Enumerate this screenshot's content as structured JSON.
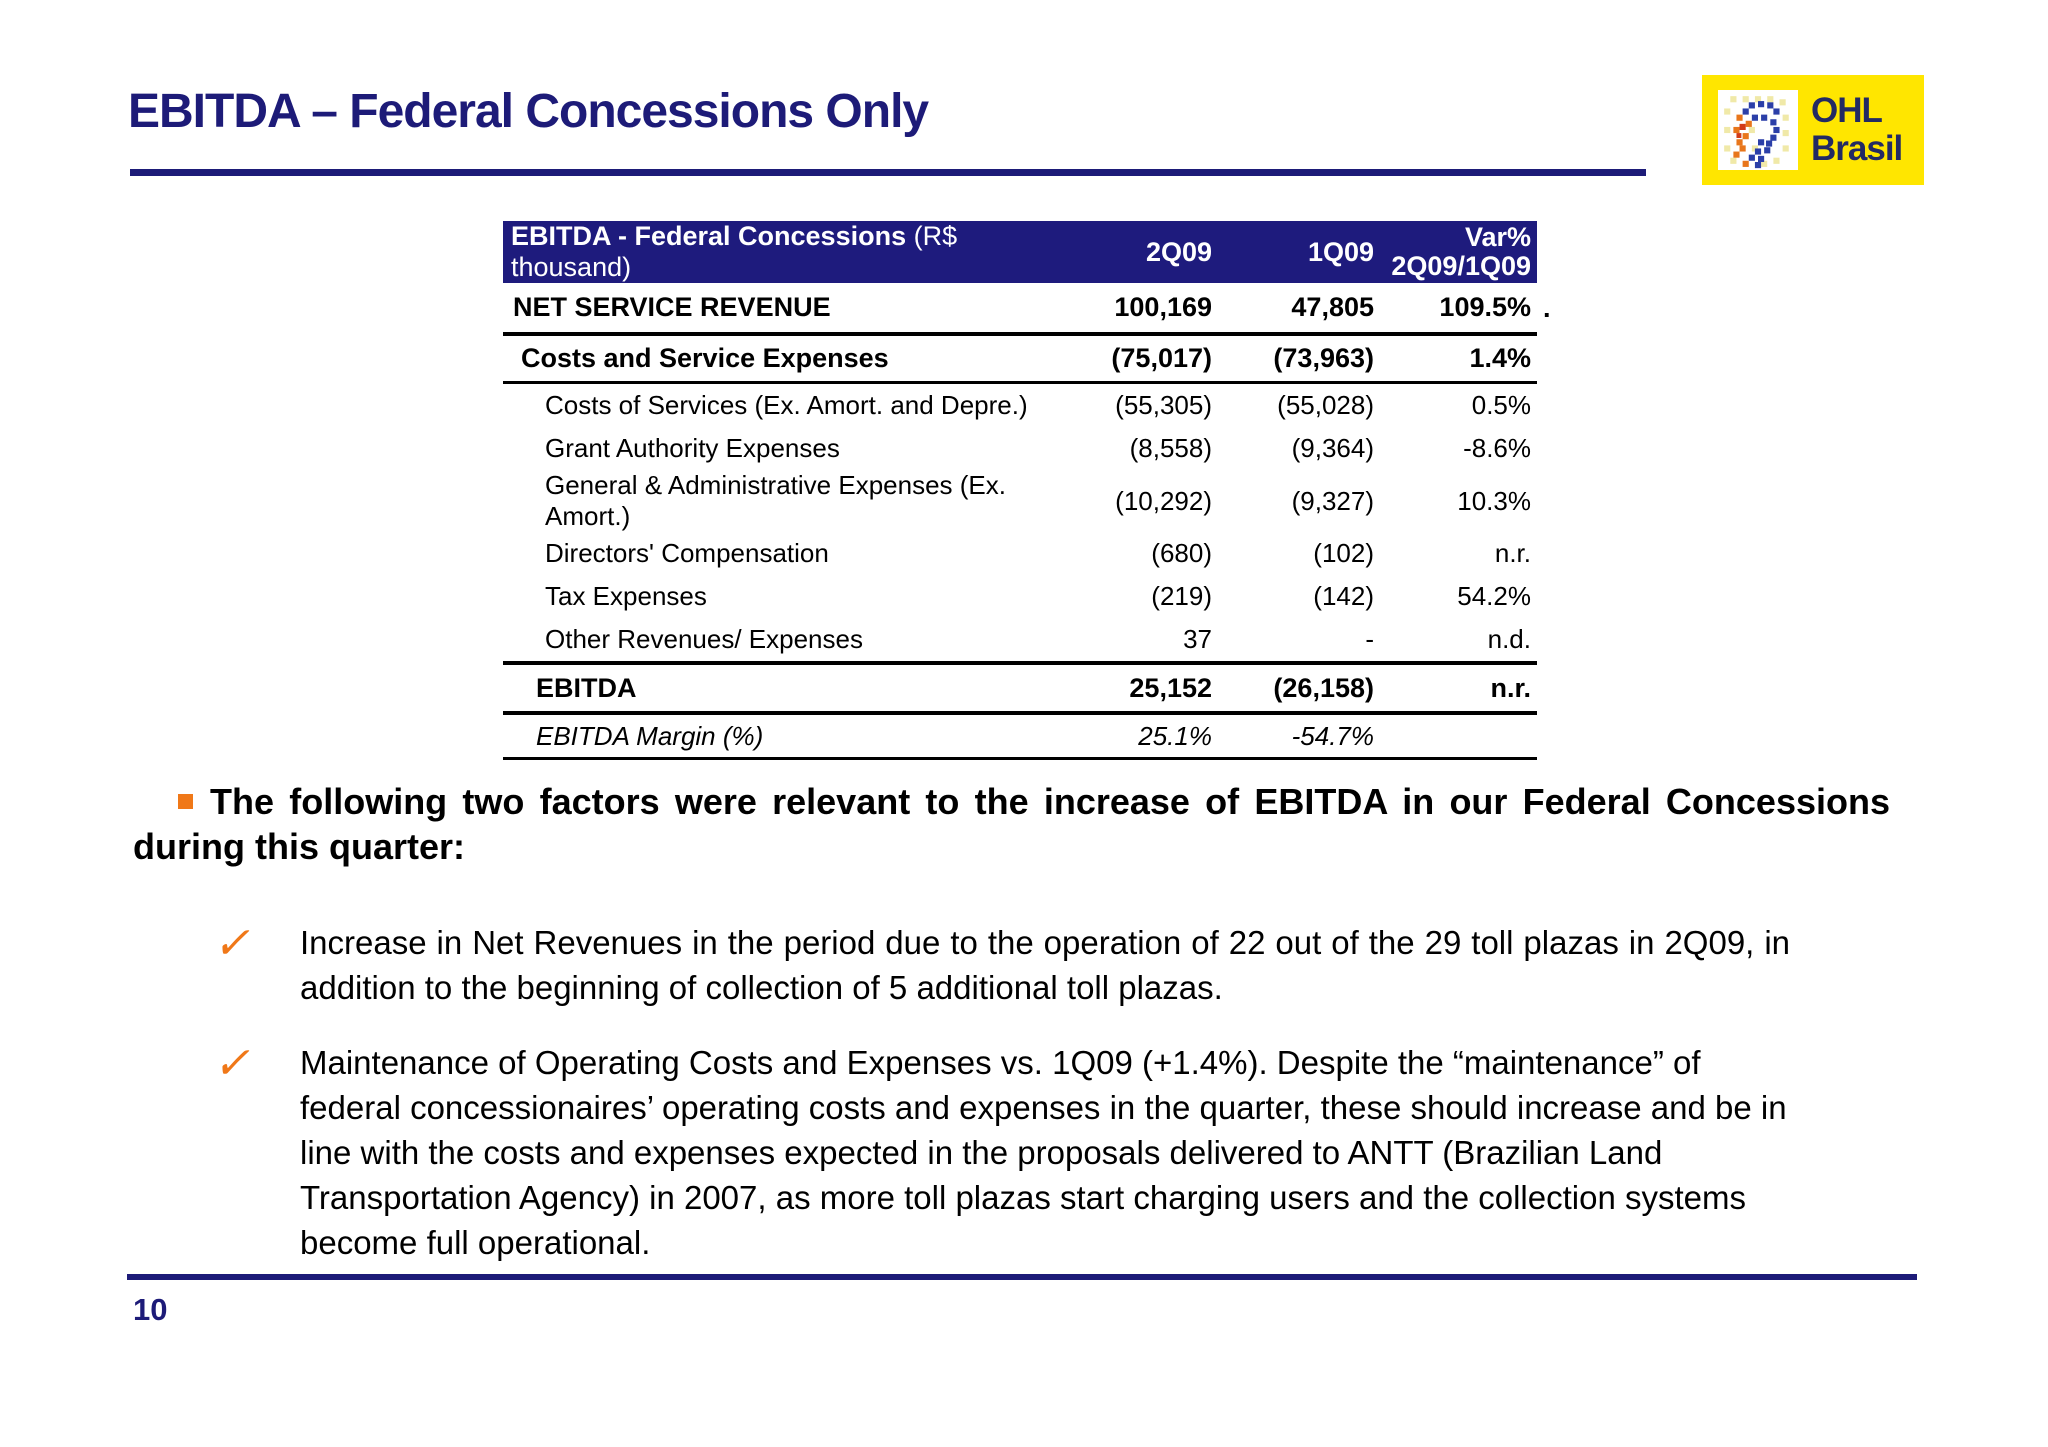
{
  "slide": {
    "title": "EBITDA – Federal Concessions Only",
    "page_number": "10",
    "colors": {
      "navy": "#1d1b78",
      "table_header_bg": "#1e1b7d",
      "logo_yellow": "#ffe600",
      "accent_orange": "#f07818",
      "text_black": "#000000"
    }
  },
  "logo": {
    "line1": "OHL",
    "line2": "Brasil",
    "face_icon": "mosaic-face-icon"
  },
  "table": {
    "header": {
      "label_bold": "EBITDA - Federal Concessions",
      "label_regular": " (R$ thousand)",
      "col1": "2Q09",
      "col2": "1Q09",
      "col3_line1": "Var%",
      "col3_line2": "2Q09/1Q09"
    },
    "rows": [
      {
        "label": "NET SERVICE REVENUE",
        "v1": "100,169",
        "v2": "47,805",
        "v3": "109.5%",
        "style": "nsr"
      },
      {
        "label": "Costs and Service Expenses",
        "v1": "(75,017)",
        "v2": "(73,963)",
        "v3": "1.4%",
        "style": "group"
      },
      {
        "label": "Costs of Services (Ex. Amort. and Depre.)",
        "v1": "(55,305)",
        "v2": "(55,028)",
        "v3": "0.5%",
        "style": "sub"
      },
      {
        "label": "Grant Authority Expenses",
        "v1": "(8,558)",
        "v2": "(9,364)",
        "v3": "-8.6%",
        "style": "sub"
      },
      {
        "label": "General & Administrative Expenses (Ex. Amort.)",
        "v1": "(10,292)",
        "v2": "(9,327)",
        "v3": "10.3%",
        "style": "sub"
      },
      {
        "label": "Directors' Compensation",
        "v1": "(680)",
        "v2": "(102)",
        "v3": "n.r.",
        "style": "sub"
      },
      {
        "label": "Tax Expenses",
        "v1": "(219)",
        "v2": "(142)",
        "v3": "54.2%",
        "style": "sub"
      },
      {
        "label": "Other Revenues/ Expenses",
        "v1": "37",
        "v2": "-",
        "v3": "n.d.",
        "style": "sub"
      },
      {
        "label": "EBITDA",
        "v1": "25,152",
        "v2": "(26,158)",
        "v3": "n.r.",
        "style": "total"
      },
      {
        "label": "EBITDA Margin (%)",
        "v1": "25.1%",
        "v2": "-54.7%",
        "v3": "",
        "style": "margin"
      }
    ],
    "stray_mark": "."
  },
  "bullets": {
    "check_glyph": "✓",
    "main": "The following two factors were relevant to the increase of EBITDA in our Federal Concessions during this quarter:",
    "checks": [
      "Increase in Net Revenues in the period due to the operation of 22 out of the 29 toll plazas in 2Q09, in addition to the beginning of collection of 5 additional toll plazas.",
      "Maintenance of Operating Costs and Expenses vs. 1Q09 (+1.4%). Despite the “maintenance” of federal concessionaires’ operating costs and expenses in the quarter, these should increase and be in line with the costs and expenses expected in the proposals delivered to ANTT (Brazilian Land Transportation Agency) in 2007, as more toll plazas start charging users and the collection systems become full operational."
    ]
  }
}
